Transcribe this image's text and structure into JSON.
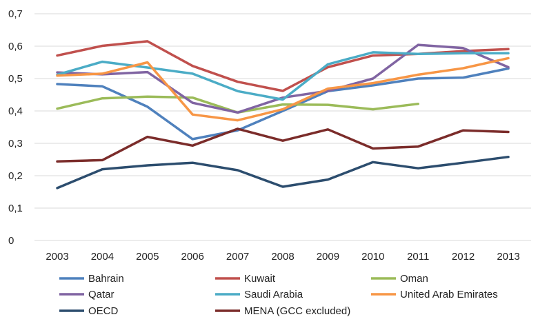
{
  "chart_data": {
    "type": "line",
    "title": "",
    "xlabel": "",
    "ylabel": "",
    "ylim": [
      0,
      0.7
    ],
    "yticks": [
      "0",
      "0,1",
      "0,2",
      "0,3",
      "0,4",
      "0,5",
      "0,6",
      "0,7"
    ],
    "grid": true,
    "legend_position": "bottom",
    "categories": [
      "2003",
      "2004",
      "2005",
      "2006",
      "2007",
      "2008",
      "2009",
      "2010",
      "2011",
      "2012",
      "2013"
    ],
    "series": [
      {
        "name": "Bahrain",
        "color": "#4F81BD",
        "values": [
          0.483,
          0.476,
          0.413,
          0.313,
          0.34,
          0.4,
          0.461,
          0.479,
          0.5,
          0.503,
          0.531
        ]
      },
      {
        "name": "Kuwait",
        "color": "#C0504D",
        "values": [
          0.571,
          0.601,
          0.615,
          0.539,
          0.49,
          0.462,
          0.535,
          0.571,
          0.576,
          0.585,
          0.591
        ]
      },
      {
        "name": "Oman",
        "color": "#9BBB59",
        "values": [
          0.407,
          0.439,
          0.444,
          0.441,
          0.395,
          0.42,
          0.419,
          0.405,
          0.422,
          null,
          null
        ]
      },
      {
        "name": "Qatar",
        "color": "#8064A2",
        "values": [
          0.519,
          0.513,
          0.52,
          0.425,
          0.395,
          0.441,
          0.462,
          0.5,
          0.604,
          0.594,
          0.535
        ]
      },
      {
        "name": "Saudi Arabia",
        "color": "#4BACC6",
        "values": [
          0.512,
          0.552,
          0.534,
          0.515,
          0.461,
          0.435,
          0.544,
          0.581,
          0.576,
          0.578,
          0.578
        ]
      },
      {
        "name": "United Arab Emirates",
        "color": "#F79646",
        "values": [
          0.509,
          0.515,
          0.55,
          0.389,
          0.371,
          0.405,
          0.469,
          0.486,
          0.512,
          0.532,
          0.563
        ]
      },
      {
        "name": "OECD",
        "color": "#2C4D6E",
        "values": [
          0.162,
          0.22,
          0.232,
          0.24,
          0.217,
          0.166,
          0.188,
          0.242,
          0.223,
          0.24,
          0.258
        ]
      },
      {
        "name": "MENA (GCC excluded)",
        "color": "#7B2C2A",
        "values": [
          0.244,
          0.248,
          0.32,
          0.293,
          0.345,
          0.308,
          0.343,
          0.284,
          0.29,
          0.34,
          0.335
        ]
      }
    ]
  }
}
